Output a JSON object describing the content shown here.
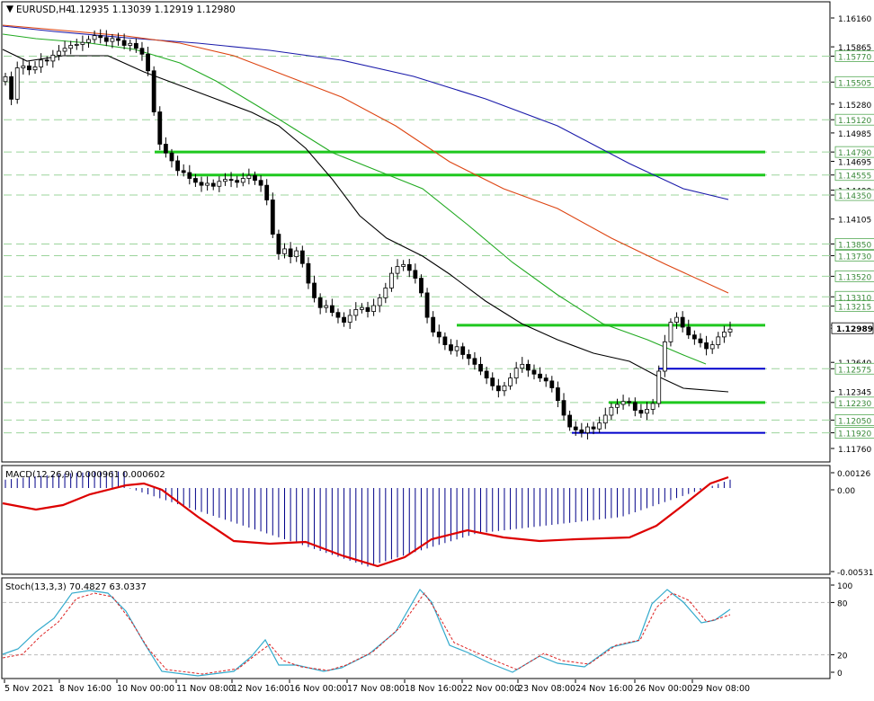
{
  "header": {
    "symbol": "EURUSD,H4",
    "ohlc": "1.12935 1.13039 1.12919 1.12980"
  },
  "main_axis": {
    "labels": [
      "1.16160",
      "1.15865",
      "1.15770",
      "1.15505",
      "1.15280",
      "1.15120",
      "1.14985",
      "1.14790",
      "1.14695",
      "1.14555",
      "1.14400",
      "1.14350",
      "1.14105",
      "1.13850",
      "1.13730",
      "1.13520",
      "1.13310",
      "1.13215",
      "1.13020",
      "1.12989",
      "1.12640",
      "1.12575",
      "1.12345",
      "1.12230",
      "1.12050",
      "1.11920",
      "1.11760"
    ],
    "boxed_labels": [
      "1.15770",
      "1.15505",
      "1.15120",
      "1.14790",
      "1.14555",
      "1.14350",
      "1.13850",
      "1.13730",
      "1.13520",
      "1.13310",
      "1.13215",
      "1.12575",
      "1.12230",
      "1.12050",
      "1.11920"
    ],
    "current_price": "1.12989"
  },
  "macd": {
    "title": "MACD(12,26,9) 0.000961 0.000602",
    "axis_labels": [
      "0.00126",
      "0.00",
      "-0.005317"
    ]
  },
  "stoch": {
    "title": "Stoch(13,3,3) 70.4827 63.0337",
    "axis_labels": [
      "100",
      "80",
      "20",
      "0"
    ]
  },
  "time_axis": {
    "labels": [
      "5 Nov 2021",
      "8 Nov 16:00",
      "10 Nov 00:00",
      "11 Nov 08:00",
      "12 Nov 16:00",
      "16 Nov 00:00",
      "17 Nov 08:00",
      "18 Nov 16:00",
      "22 Nov 00:00",
      "23 Nov 08:00",
      "24 Nov 16:00",
      "26 Nov 00:00",
      "29 Nov 08:00"
    ]
  },
  "colors": {
    "support_resistance": "#1ec81e",
    "blue_level": "#0000cc",
    "ma_blue": "#1a1aaa",
    "ma_red": "#dd4411",
    "ma_green": "#22aa22",
    "ma_black": "#000000",
    "macd_hist": "#000088",
    "macd_signal": "#dd0000",
    "stoch_main": "#33aacc",
    "stoch_signal": "#dd2222"
  }
}
